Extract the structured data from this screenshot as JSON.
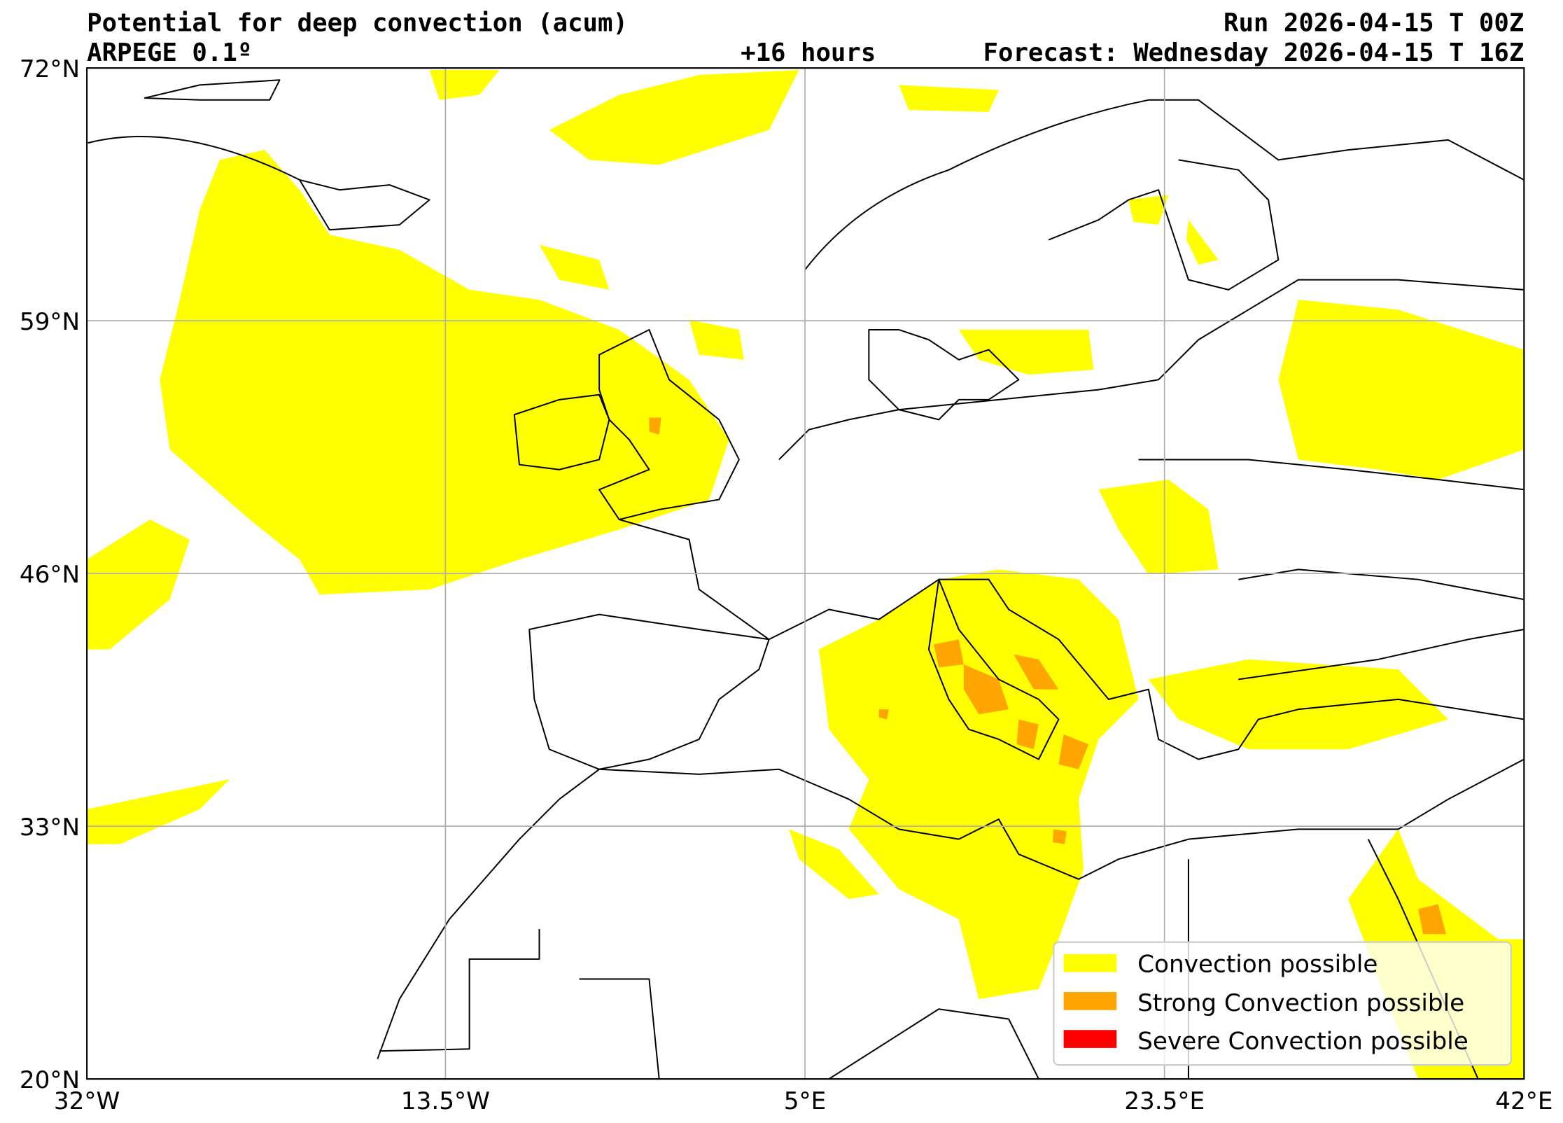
{
  "header": {
    "title": "Potential for deep convection (acum)",
    "model": "ARPEGE 0.1º",
    "run": "Run 2026-04-15 T 00Z",
    "lead": "+16 hours",
    "forecast": "Forecast: Wednesday 2026-04-15 T 16Z"
  },
  "axes": {
    "x_ticks": [
      "32°W",
      "13.5°W",
      "5°E",
      "23.5°E",
      "42°E"
    ],
    "y_ticks": [
      "72°N",
      "59°N",
      "46°N",
      "33°N",
      "20°N"
    ],
    "lon_range": [
      -32,
      42
    ],
    "lat_range": [
      20,
      72
    ]
  },
  "legend": {
    "items": [
      {
        "label": "Convection possible",
        "color": "#ffff00"
      },
      {
        "label": "Strong Convection possible",
        "color": "#ffa500"
      },
      {
        "label": "Severe Convection possible",
        "color": "#ff0000"
      }
    ]
  }
}
